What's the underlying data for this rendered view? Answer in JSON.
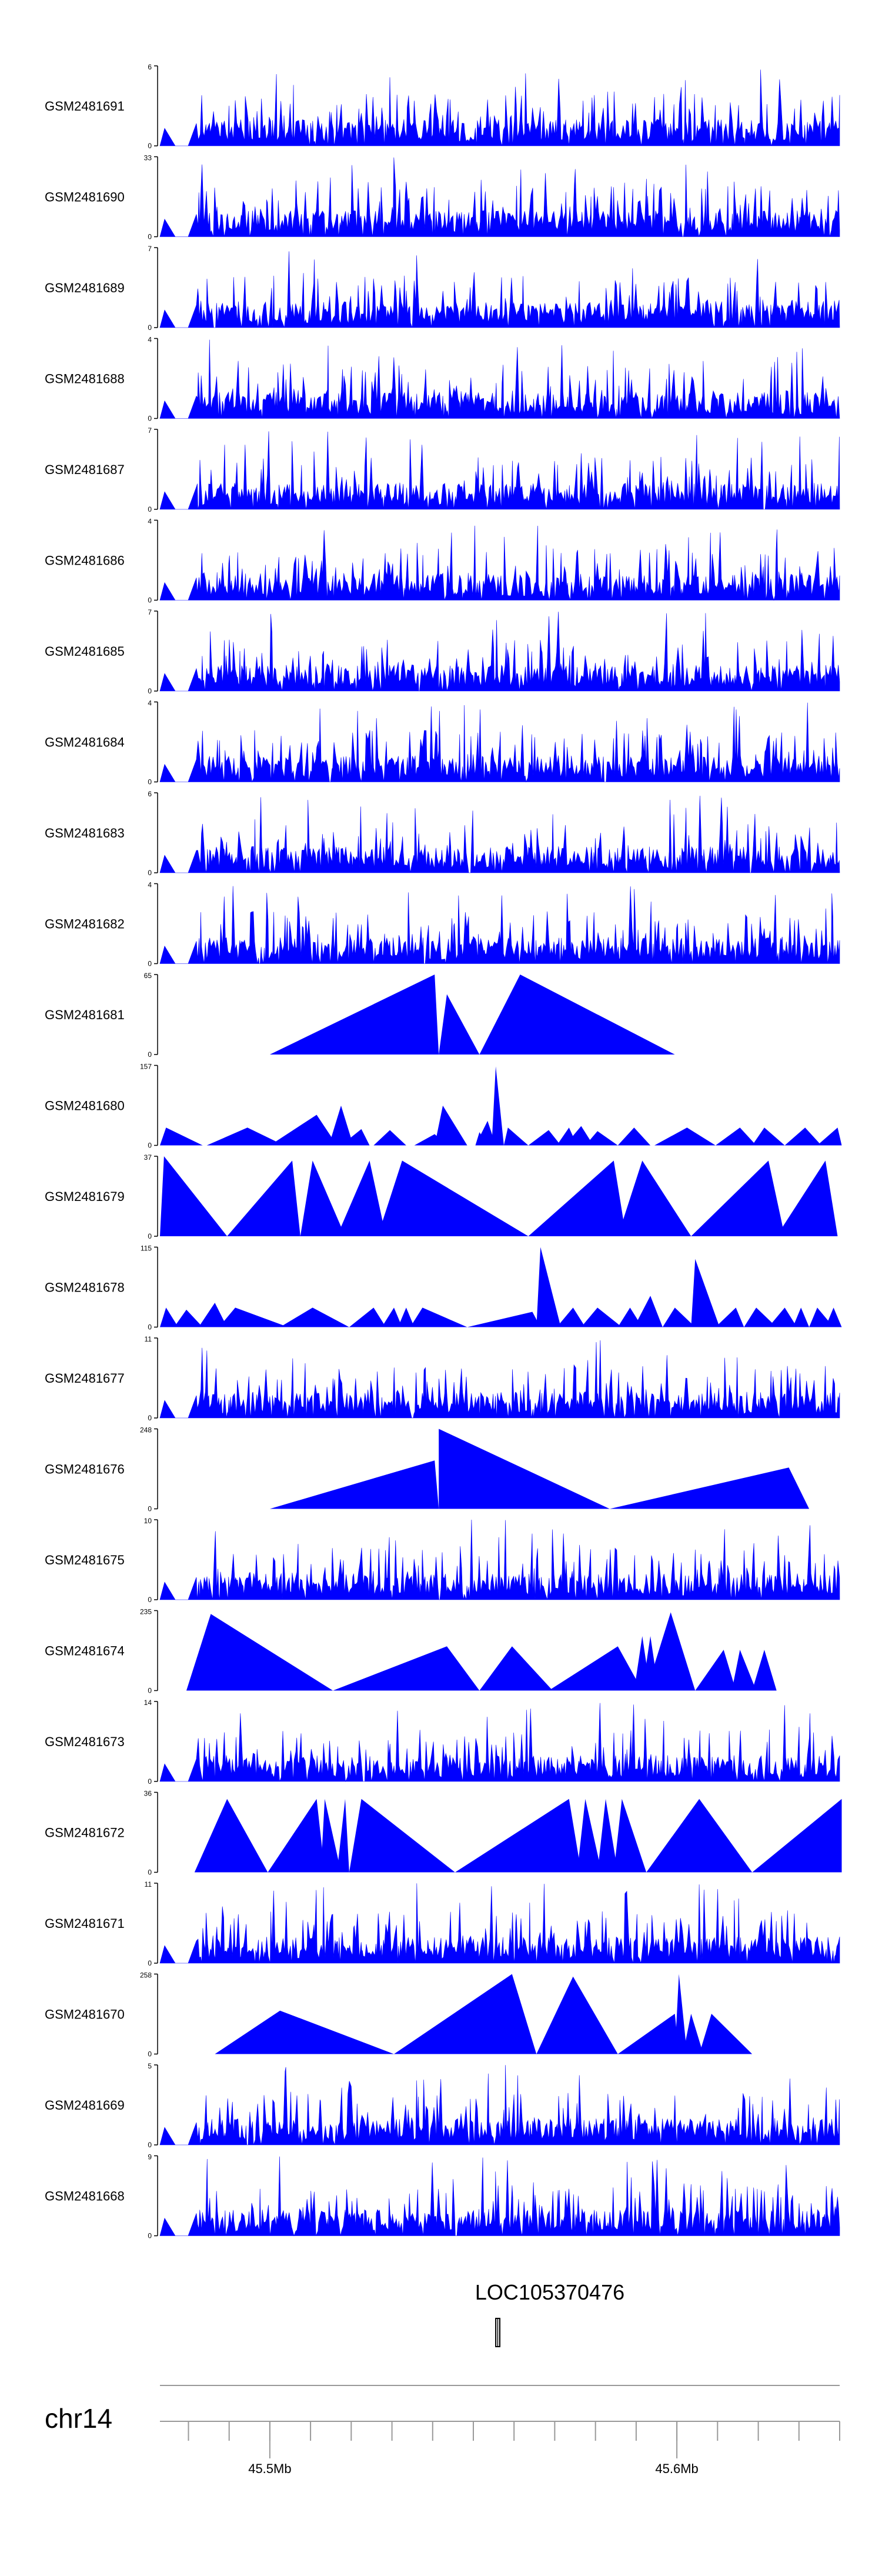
{
  "chart_data": {
    "type": "area",
    "title": "",
    "color": "#0000ff",
    "chromosome": "chr14",
    "x_range_mb": [
      45.473,
      45.64
    ],
    "x_ticks": [
      {
        "value": 45.5,
        "label": "45.5Mb"
      },
      {
        "value": 45.6,
        "label": "45.6Mb"
      }
    ],
    "gene": {
      "name": "LOC105370476",
      "start_mb": 45.5555,
      "end_mb": 45.5565
    },
    "tracks": [
      {
        "name": "GSM2481691",
        "y_max": 6,
        "shape": "dense",
        "seed": 11,
        "start_mb": 45.473
      },
      {
        "name": "GSM2481690",
        "y_max": 33,
        "shape": "spiky",
        "seed": 12,
        "start_mb": 45.473
      },
      {
        "name": "GSM2481689",
        "y_max": 7,
        "shape": "dense",
        "seed": 13,
        "start_mb": 45.473
      },
      {
        "name": "GSM2481688",
        "y_max": 4,
        "shape": "dense",
        "seed": 14,
        "start_mb": 45.473
      },
      {
        "name": "GSM2481687",
        "y_max": 7,
        "shape": "dense",
        "seed": 15,
        "start_mb": 45.473
      },
      {
        "name": "GSM2481686",
        "y_max": 4,
        "shape": "dense",
        "seed": 16,
        "start_mb": 45.473
      },
      {
        "name": "GSM2481685",
        "y_max": 7,
        "shape": "dense",
        "seed": 17,
        "start_mb": 45.473
      },
      {
        "name": "GSM2481684",
        "y_max": 4,
        "shape": "dense",
        "seed": 18,
        "start_mb": 45.473
      },
      {
        "name": "GSM2481683",
        "y_max": 6,
        "shape": "dense",
        "seed": 19,
        "start_mb": 45.473
      },
      {
        "name": "GSM2481682",
        "y_max": 4,
        "shape": "dense",
        "seed": 20,
        "start_mb": 45.473
      },
      {
        "name": "GSM2481681",
        "y_max": 65,
        "shape": "peaks",
        "peaks": [
          {
            "start": 45.5,
            "peak": 45.5405,
            "end": 45.5415,
            "value": 65
          },
          {
            "start": 45.5415,
            "peak": 45.5435,
            "end": 45.5515,
            "value": 49
          },
          {
            "start": 45.5515,
            "peak": 45.5615,
            "end": 45.5995,
            "value": 65
          }
        ]
      },
      {
        "name": "GSM2481680",
        "y_max": 157,
        "shape": "peaks",
        "peaks": [
          {
            "start": 45.473,
            "peak": 45.4745,
            "end": 45.4835,
            "value": 35
          },
          {
            "start": 45.4845,
            "peak": 45.4945,
            "end": 45.5035,
            "value": 35
          },
          {
            "start": 45.5,
            "peak": 45.5115,
            "end": 45.5165,
            "value": 60
          },
          {
            "start": 45.5145,
            "peak": 45.5175,
            "end": 45.5205,
            "value": 78
          },
          {
            "start": 45.5175,
            "peak": 45.5225,
            "end": 45.5245,
            "value": 32
          },
          {
            "start": 45.5255,
            "peak": 45.5295,
            "end": 45.5335,
            "value": 30
          },
          {
            "start": 45.5355,
            "peak": 45.5405,
            "end": 45.5435,
            "value": 22
          },
          {
            "start": 45.5405,
            "peak": 45.5425,
            "end": 45.5485,
            "value": 78
          },
          {
            "start": 45.5505,
            "peak": 45.5515,
            "end": 45.5535,
            "value": 26
          },
          {
            "start": 45.5505,
            "peak": 45.5535,
            "end": 45.5555,
            "value": 48
          },
          {
            "start": 45.5545,
            "peak": 45.5555,
            "end": 45.5575,
            "value": 155
          },
          {
            "start": 45.5575,
            "peak": 45.5585,
            "end": 45.5635,
            "value": 35
          },
          {
            "start": 45.5635,
            "peak": 45.5685,
            "end": 45.5715,
            "value": 30
          },
          {
            "start": 45.5705,
            "peak": 45.5735,
            "end": 45.5755,
            "value": 35
          },
          {
            "start": 45.5725,
            "peak": 45.5765,
            "end": 45.5795,
            "value": 38
          },
          {
            "start": 45.5775,
            "peak": 45.5805,
            "end": 45.5855,
            "value": 28
          },
          {
            "start": 45.5855,
            "peak": 45.5895,
            "end": 45.5935,
            "value": 35
          },
          {
            "start": 45.5945,
            "peak": 45.6025,
            "end": 45.6095,
            "value": 35
          },
          {
            "start": 45.6095,
            "peak": 45.6155,
            "end": 45.6195,
            "value": 35
          },
          {
            "start": 45.6185,
            "peak": 45.6215,
            "end": 45.6265,
            "value": 35
          },
          {
            "start": 45.6265,
            "peak": 45.6315,
            "end": 45.6355,
            "value": 35
          },
          {
            "start": 45.6345,
            "peak": 45.6395,
            "end": 45.6405,
            "value": 35
          }
        ]
      },
      {
        "name": "GSM2481679",
        "y_max": 37,
        "shape": "peaks",
        "peaks": [
          {
            "start": 45.473,
            "peak": 45.474,
            "end": 45.4895,
            "value": 37
          },
          {
            "start": 45.4895,
            "peak": 45.5055,
            "end": 45.5075,
            "value": 35
          },
          {
            "start": 45.5075,
            "peak": 45.5105,
            "end": 45.5185,
            "value": 35
          },
          {
            "start": 45.5165,
            "peak": 45.5245,
            "end": 45.5285,
            "value": 35
          },
          {
            "start": 45.5265,
            "peak": 45.5325,
            "end": 45.5635,
            "value": 35
          },
          {
            "start": 45.5635,
            "peak": 45.5845,
            "end": 45.5875,
            "value": 35
          },
          {
            "start": 45.5855,
            "peak": 45.5915,
            "end": 45.6035,
            "value": 35
          },
          {
            "start": 45.6035,
            "peak": 45.6225,
            "end": 45.6265,
            "value": 35
          },
          {
            "start": 45.6245,
            "peak": 45.6365,
            "end": 45.6395,
            "value": 35
          }
        ]
      },
      {
        "name": "GSM2481678",
        "y_max": 115,
        "shape": "peaks",
        "peaks": [
          {
            "start": 45.473,
            "peak": 45.4745,
            "end": 45.4775,
            "value": 28
          },
          {
            "start": 45.4765,
            "peak": 45.4795,
            "end": 45.4835,
            "value": 25
          },
          {
            "start": 45.4825,
            "peak": 45.4865,
            "end": 45.4895,
            "value": 35
          },
          {
            "start": 45.4875,
            "peak": 45.4915,
            "end": 45.5045,
            "value": 28
          },
          {
            "start": 45.5025,
            "peak": 45.5105,
            "end": 45.5195,
            "value": 28
          },
          {
            "start": 45.5195,
            "peak": 45.5255,
            "end": 45.5285,
            "value": 28
          },
          {
            "start": 45.5275,
            "peak": 45.5305,
            "end": 45.5325,
            "value": 28
          },
          {
            "start": 45.5315,
            "peak": 45.5335,
            "end": 45.5355,
            "value": 28
          },
          {
            "start": 45.5345,
            "peak": 45.5375,
            "end": 45.5485,
            "value": 28
          },
          {
            "start": 45.5485,
            "peak": 45.5645,
            "end": 45.5665,
            "value": 22
          },
          {
            "start": 45.5655,
            "peak": 45.5665,
            "end": 45.5715,
            "value": 115
          },
          {
            "start": 45.5705,
            "peak": 45.5745,
            "end": 45.5775,
            "value": 28
          },
          {
            "start": 45.5765,
            "peak": 45.5805,
            "end": 45.5865,
            "value": 28
          },
          {
            "start": 45.5855,
            "peak": 45.5885,
            "end": 45.5915,
            "value": 28
          },
          {
            "start": 45.5895,
            "peak": 45.5935,
            "end": 45.5965,
            "value": 45
          },
          {
            "start": 45.5965,
            "peak": 45.5995,
            "end": 45.6045,
            "value": 28
          },
          {
            "start": 45.6035,
            "peak": 45.6045,
            "end": 45.6105,
            "value": 98
          },
          {
            "start": 45.6095,
            "peak": 45.6145,
            "end": 45.6165,
            "value": 28
          },
          {
            "start": 45.6165,
            "peak": 45.6195,
            "end": 45.6245,
            "value": 28
          },
          {
            "start": 45.6225,
            "peak": 45.6265,
            "end": 45.6295,
            "value": 28
          },
          {
            "start": 45.6285,
            "peak": 45.6305,
            "end": 45.6325,
            "value": 28
          },
          {
            "start": 45.6325,
            "peak": 45.6345,
            "end": 45.6385,
            "value": 28
          },
          {
            "start": 45.6365,
            "peak": 45.6385,
            "end": 45.6405,
            "value": 28
          }
        ]
      },
      {
        "name": "GSM2481677",
        "y_max": 11,
        "shape": "dense",
        "seed": 21,
        "start_mb": 45.473
      },
      {
        "name": "GSM2481676",
        "y_max": 248,
        "shape": "peaks",
        "peaks": [
          {
            "start": 45.5,
            "peak": 45.5405,
            "end": 45.5415,
            "value": 150
          },
          {
            "start": 45.5415,
            "peak": 45.5415,
            "end": 45.5835,
            "value": 248
          },
          {
            "start": 45.5835,
            "peak": 45.6275,
            "end": 45.6325,
            "value": 128
          }
        ]
      },
      {
        "name": "GSM2481675",
        "y_max": 10,
        "shape": "dense",
        "seed": 22,
        "start_mb": 45.473
      },
      {
        "name": "GSM2481674",
        "y_max": 235,
        "shape": "peaks",
        "peaks": [
          {
            "start": 45.4795,
            "peak": 45.4855,
            "end": 45.5155,
            "value": 225
          },
          {
            "start": 45.5155,
            "peak": 45.5435,
            "end": 45.5515,
            "value": 130
          },
          {
            "start": 45.5515,
            "peak": 45.5595,
            "end": 45.5695,
            "value": 130
          },
          {
            "start": 45.5685,
            "peak": 45.5855,
            "end": 45.5915,
            "value": 130
          },
          {
            "start": 45.5895,
            "peak": 45.5915,
            "end": 45.5935,
            "value": 160
          },
          {
            "start": 45.5915,
            "peak": 45.5935,
            "end": 45.5955,
            "value": 160
          },
          {
            "start": 45.5925,
            "peak": 45.5985,
            "end": 45.6045,
            "value": 230
          },
          {
            "start": 45.6045,
            "peak": 45.6115,
            "end": 45.6145,
            "value": 120
          },
          {
            "start": 45.6135,
            "peak": 45.6155,
            "end": 45.6195,
            "value": 120
          },
          {
            "start": 45.6185,
            "peak": 45.6215,
            "end": 45.6245,
            "value": 120
          }
        ]
      },
      {
        "name": "GSM2481673",
        "y_max": 14,
        "shape": "dense",
        "seed": 23,
        "start_mb": 45.473
      },
      {
        "name": "GSM2481672",
        "y_max": 36,
        "shape": "peaks",
        "peaks": [
          {
            "start": 45.4815,
            "peak": 45.4895,
            "end": 45.4995,
            "value": 33
          },
          {
            "start": 45.4995,
            "peak": 45.5115,
            "end": 45.5135,
            "value": 33
          },
          {
            "start": 45.5125,
            "peak": 45.5135,
            "end": 45.5175,
            "value": 33
          },
          {
            "start": 45.5165,
            "peak": 45.5185,
            "end": 45.5195,
            "value": 33
          },
          {
            "start": 45.5195,
            "peak": 45.5225,
            "end": 45.5455,
            "value": 33
          },
          {
            "start": 45.5455,
            "peak": 45.5735,
            "end": 45.5765,
            "value": 33
          },
          {
            "start": 45.5755,
            "peak": 45.5775,
            "end": 45.5815,
            "value": 33
          },
          {
            "start": 45.5805,
            "peak": 45.5825,
            "end": 45.5855,
            "value": 33
          },
          {
            "start": 45.5845,
            "peak": 45.5865,
            "end": 45.5925,
            "value": 33
          },
          {
            "start": 45.5925,
            "peak": 45.6055,
            "end": 45.6185,
            "value": 33
          },
          {
            "start": 45.6185,
            "peak": 45.6405,
            "end": 45.6405,
            "value": 33
          }
        ]
      },
      {
        "name": "GSM2481671",
        "y_max": 11,
        "shape": "dense",
        "seed": 24,
        "start_mb": 45.473
      },
      {
        "name": "GSM2481670",
        "y_max": 258,
        "shape": "peaks",
        "peaks": [
          {
            "start": 45.4865,
            "peak": 45.5025,
            "end": 45.5305,
            "value": 140
          },
          {
            "start": 45.5305,
            "peak": 45.5595,
            "end": 45.5655,
            "value": 258
          },
          {
            "start": 45.5655,
            "peak": 45.5745,
            "end": 45.5855,
            "value": 250
          },
          {
            "start": 45.5855,
            "peak": 45.5995,
            "end": 45.6005,
            "value": 130
          },
          {
            "start": 45.5995,
            "peak": 45.6005,
            "end": 45.6025,
            "value": 258
          },
          {
            "start": 45.6015,
            "peak": 45.6035,
            "end": 45.6065,
            "value": 130
          },
          {
            "start": 45.6055,
            "peak": 45.6085,
            "end": 45.6185,
            "value": 130
          }
        ]
      },
      {
        "name": "GSM2481669",
        "y_max": 5,
        "shape": "dense",
        "seed": 25,
        "start_mb": 45.473
      },
      {
        "name": "GSM2481668",
        "y_max": 9,
        "shape": "dense",
        "seed": 26,
        "start_mb": 45.473
      }
    ]
  }
}
